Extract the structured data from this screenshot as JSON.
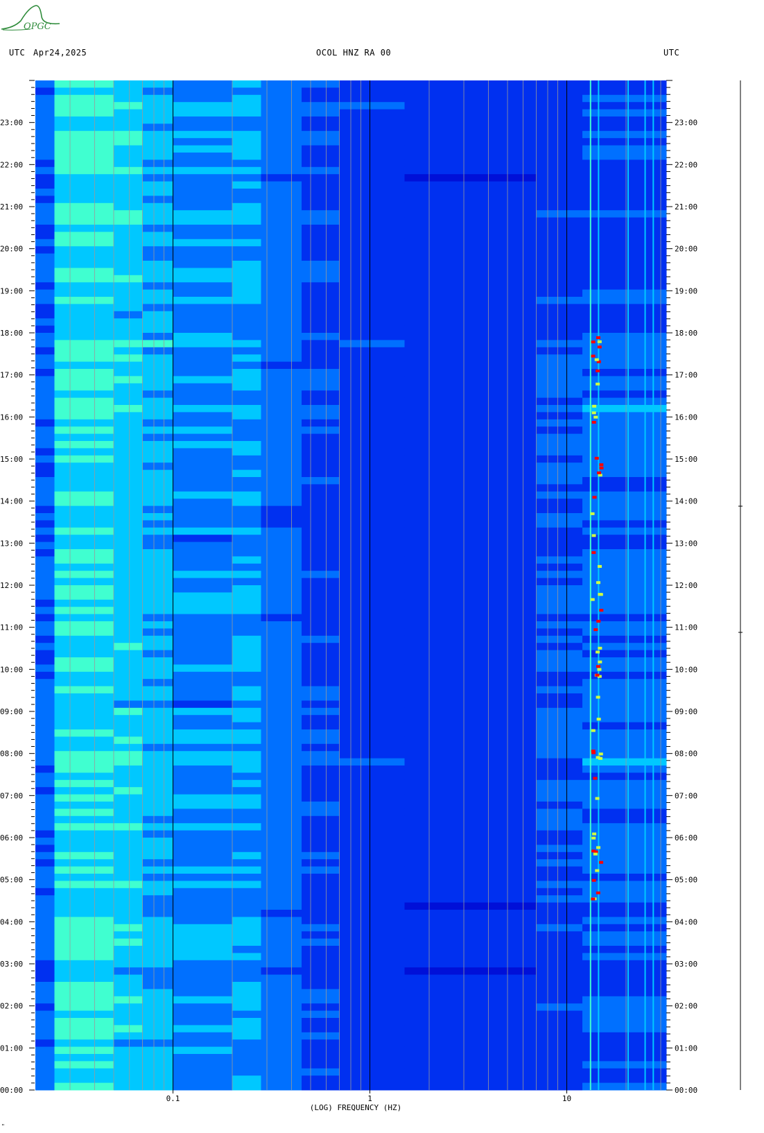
{
  "logo": {
    "text": "OPGC",
    "icon": "opgc-logo-icon",
    "color": "#2e8b3a"
  },
  "header": {
    "left_tz": "UTC",
    "date": "Apr24,2025",
    "title": "OCOL HNZ RA 00",
    "right_tz": "UTC"
  },
  "corner_mark": "\"",
  "chart_data": {
    "type": "heatmap",
    "title": "OCOL HNZ RA 00",
    "subtitle": "Apr24,2025",
    "xlabel": "(LOG) FREQUENCY (HZ)",
    "ylabel": "",
    "x_scale": "log",
    "xlim": [
      0.02,
      32
    ],
    "x_ticks": [
      {
        "value": 0.1,
        "label": "0.1"
      },
      {
        "value": 1,
        "label": "1"
      },
      {
        "value": 10,
        "label": "10"
      }
    ],
    "ylim_hours": [
      0,
      24
    ],
    "y_ticks": [
      "00:00",
      "01:00",
      "02:00",
      "03:00",
      "04:00",
      "05:00",
      "06:00",
      "07:00",
      "08:00",
      "09:00",
      "10:00",
      "11:00",
      "12:00",
      "13:00",
      "14:00",
      "15:00",
      "16:00",
      "17:00",
      "18:00",
      "19:00",
      "20:00",
      "21:00",
      "22:00",
      "23:00"
    ],
    "colormap": [
      "#0010d8",
      "#0030f0",
      "#0070ff",
      "#00c8ff",
      "#40ffd0",
      "#d0ff40",
      "#ff8000",
      "#ff0000"
    ],
    "background_level_low_freq": "cyan",
    "background_level_mid_freq": "blue",
    "persistent_lines_hz": [
      13.2,
      14.5,
      20.5,
      25.0,
      27.5
    ],
    "activity_window_hours": [
      4.5,
      18.0
    ],
    "activity_band_hz": [
      7,
      30
    ]
  }
}
